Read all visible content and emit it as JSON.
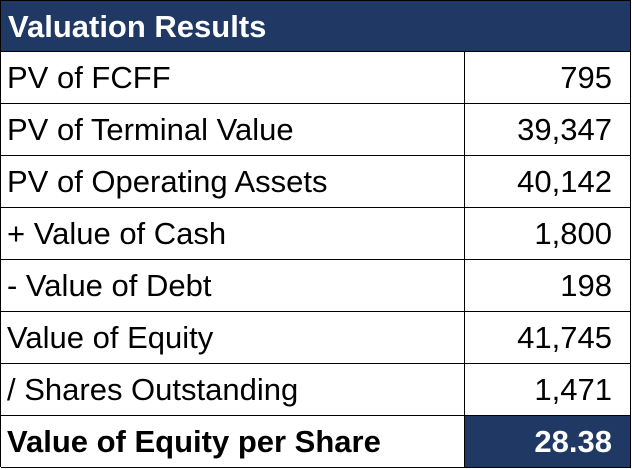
{
  "table": {
    "title": "Valuation Results",
    "rows": [
      {
        "label": "PV of FCFF",
        "value": "795"
      },
      {
        "label": "PV of Terminal Value",
        "value": "39,347"
      },
      {
        "label": "PV of Operating Assets",
        "value": "40,142"
      },
      {
        "label": "+ Value of Cash",
        "value": "1,800"
      },
      {
        "label": "- Value of Debt",
        "value": "198"
      },
      {
        "label": "Value of Equity",
        "value": "41,745"
      },
      {
        "label": "/ Shares Outstanding",
        "value": "1,471"
      },
      {
        "label": "Value of Equity per Share",
        "value": "28.38"
      }
    ],
    "colors": {
      "header_bg": "#1f3864",
      "header_text": "#ffffff"
    }
  }
}
